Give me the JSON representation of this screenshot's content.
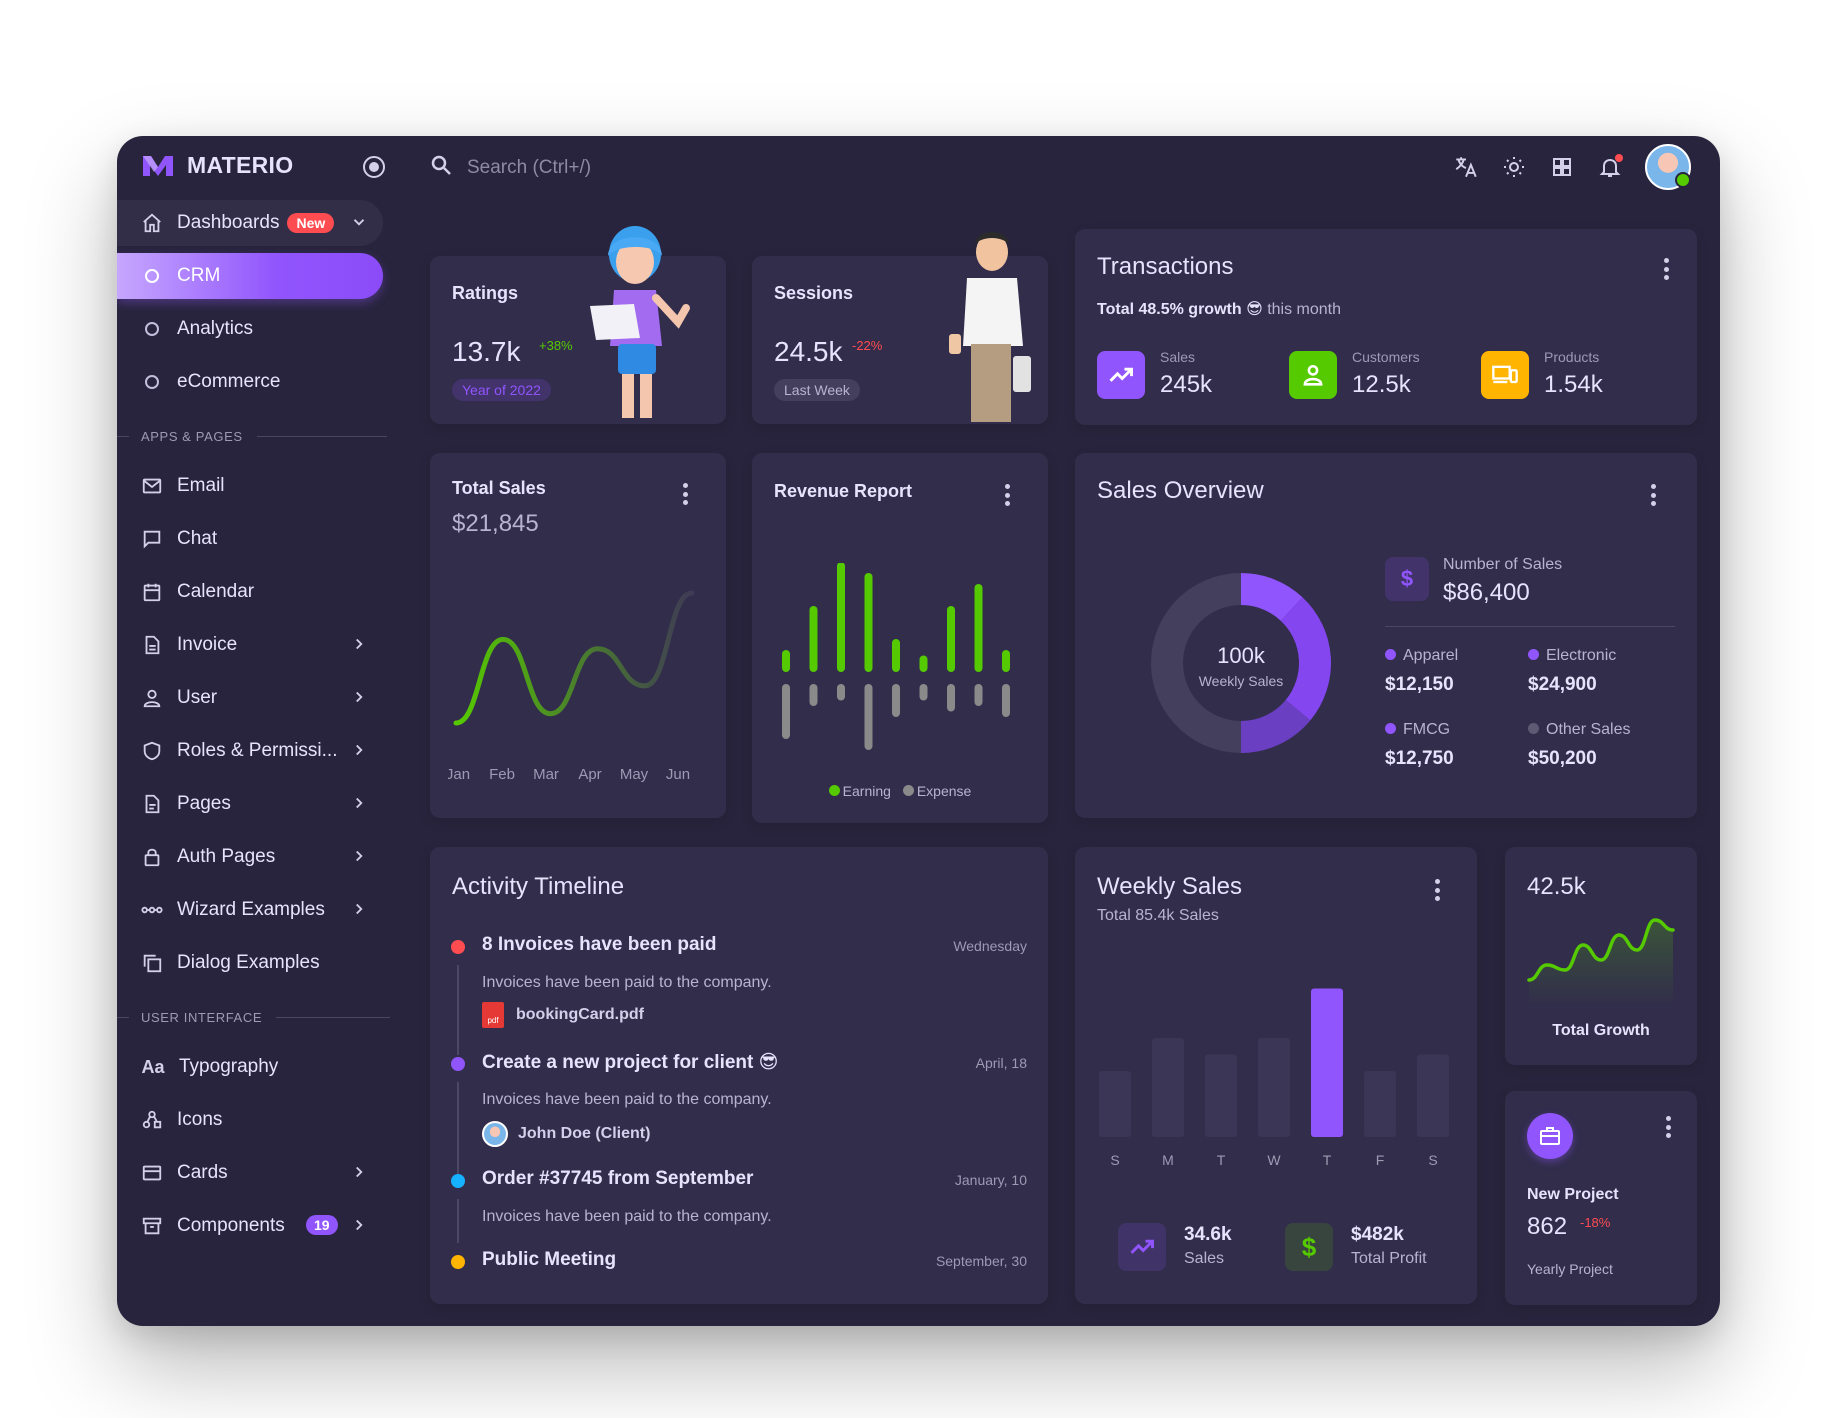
{
  "brand": {
    "name": "MATERIO"
  },
  "search": {
    "placeholder": "Search (Ctrl+/)"
  },
  "sidebar": {
    "dashboards": {
      "label": "Dashboards",
      "badge": "New"
    },
    "sub_items": [
      {
        "label": "CRM"
      },
      {
        "label": "Analytics"
      },
      {
        "label": "eCommerce"
      }
    ],
    "section_apps": "APPS & PAGES",
    "apps": [
      {
        "label": "Email"
      },
      {
        "label": "Chat"
      },
      {
        "label": "Calendar"
      },
      {
        "label": "Invoice"
      },
      {
        "label": "User"
      },
      {
        "label": "Roles & Permissi..."
      },
      {
        "label": "Pages"
      },
      {
        "label": "Auth Pages"
      },
      {
        "label": "Wizard Examples"
      },
      {
        "label": "Dialog Examples"
      }
    ],
    "section_ui": "USER INTERFACE",
    "ui": [
      {
        "label": "Typography"
      },
      {
        "label": "Icons"
      },
      {
        "label": "Cards"
      },
      {
        "label": "Components",
        "badge": "19"
      }
    ]
  },
  "ratings": {
    "title": "Ratings",
    "value": "13.7k",
    "change": "+38%",
    "chip": "Year of 2022"
  },
  "sessions": {
    "title": "Sessions",
    "value": "24.5k",
    "change": "-22%",
    "chip": "Last Week"
  },
  "transactions": {
    "title": "Transactions",
    "growth": "Total 48.5% growth",
    "emoji": "😎",
    "suffix": "this month",
    "stats": [
      {
        "label": "Sales",
        "value": "245k",
        "color": "#9155fd",
        "icon": "trending-up-icon"
      },
      {
        "label": "Customers",
        "value": "12.5k",
        "color": "#56ca00",
        "icon": "account-icon"
      },
      {
        "label": "Products",
        "value": "1.54k",
        "color": "#ffb400",
        "icon": "devices-icon"
      }
    ]
  },
  "total_sales": {
    "title": "Total Sales",
    "value": "$21,845"
  },
  "revenue_report": {
    "title": "Revenue Report",
    "legend_earning": "Earning",
    "legend_expense": "Expense"
  },
  "sales_overview": {
    "title": "Sales Overview",
    "center_value": "100k",
    "center_label": "Weekly Sales",
    "number_label": "Number of Sales",
    "number_value": "$86,400",
    "breakdown": [
      {
        "label": "Apparel",
        "value": "$12,150",
        "color": "#9155fd"
      },
      {
        "label": "Electronic",
        "value": "$24,900",
        "color": "#9155fd"
      },
      {
        "label": "FMCG",
        "value": "$12,750",
        "color": "#9155fd"
      },
      {
        "label": "Other Sales",
        "value": "$50,200",
        "color": "#5e5a74"
      }
    ]
  },
  "timeline": {
    "title": "Activity Timeline",
    "items": [
      {
        "title": "8 Invoices have been paid",
        "date": "Wednesday",
        "desc": "Invoices have been paid to the company.",
        "attachment": "bookingCard.pdf",
        "color": "#ff4c51"
      },
      {
        "title": "Create a new project for client 😎",
        "date": "April, 18",
        "desc": "Invoices have been paid to the company.",
        "person": "John Doe (Client)",
        "color": "#9155fd"
      },
      {
        "title": "Order #37745 from September",
        "date": "January, 10",
        "desc": "Invoices have been paid to the company.",
        "color": "#16b1ff"
      },
      {
        "title": "Public Meeting",
        "date": "September, 30",
        "color": "#ffb400"
      }
    ]
  },
  "weekly_sales": {
    "title": "Weekly Sales",
    "subtitle": "Total 85.4k Sales",
    "stat1_value": "34.6k",
    "stat1_label": "Sales",
    "stat2_value": "$482k",
    "stat2_label": "Total Profit"
  },
  "total_growth": {
    "value": "42.5k",
    "label": "Total Growth"
  },
  "new_project": {
    "title": "New Project",
    "value": "862",
    "change": "-18%",
    "subtitle": "Yearly Project"
  },
  "chart_data": [
    {
      "type": "line",
      "x": [
        "Jan",
        "Feb",
        "Mar",
        "Apr",
        "May",
        "Jun"
      ],
      "values": [
        0,
        45,
        5,
        40,
        20,
        70
      ],
      "title": "Total Sales"
    },
    {
      "type": "bar",
      "series": [
        {
          "name": "Earning",
          "values": [
            2,
            6,
            10,
            9,
            3,
            1.5,
            6,
            8,
            2
          ]
        },
        {
          "name": "Expense",
          "values": [
            -5,
            -2,
            -1.5,
            -6,
            -3,
            -1.5,
            -2.5,
            -2,
            -3
          ]
        }
      ],
      "title": "Revenue Report"
    },
    {
      "type": "pie",
      "categories": [
        "Other Sales",
        "Apparel",
        "Electronic",
        "FMCG"
      ],
      "values": [
        50,
        12,
        24,
        14
      ],
      "title": "Sales Overview"
    },
    {
      "type": "bar",
      "categories": [
        "S",
        "M",
        "T",
        "W",
        "T",
        "F",
        "S"
      ],
      "values": [
        40,
        60,
        50,
        60,
        90,
        40,
        50
      ],
      "title": "Weekly Sales"
    },
    {
      "type": "area",
      "values": [
        10,
        25,
        20,
        45,
        30,
        55,
        40,
        70,
        60
      ],
      "title": "Total Growth"
    }
  ]
}
